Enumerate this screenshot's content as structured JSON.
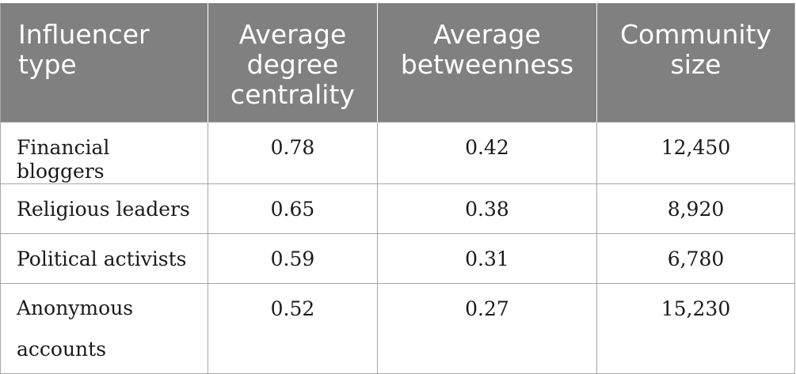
{
  "table": {
    "headers": [
      [
        "Influencer",
        "type"
      ],
      [
        "Average",
        "degree",
        "centrality"
      ],
      [
        "Average",
        "betweenness"
      ],
      [
        "Community",
        "size"
      ]
    ],
    "rows": [
      {
        "type": "Financial bloggers",
        "degree": "0.78",
        "betweenness": "0.42",
        "size": "12,450"
      },
      {
        "type": "Religious leaders",
        "degree": "0.65",
        "betweenness": "0.38",
        "size": "8,920"
      },
      {
        "type": "Political activists",
        "degree": "0.59",
        "betweenness": "0.31",
        "size": "6,780"
      },
      {
        "type_lines": [
          "Anonymous",
          "accounts"
        ],
        "degree": "0.52",
        "betweenness": "0.27",
        "size": "15,230"
      }
    ]
  }
}
